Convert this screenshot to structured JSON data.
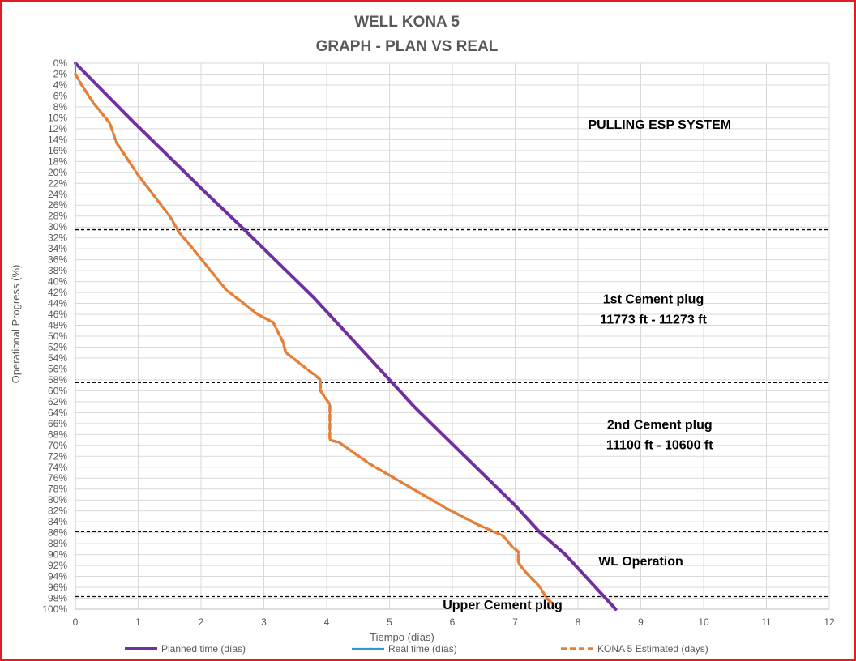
{
  "chart_data": {
    "type": "line",
    "title": [
      "WELL KONA 5",
      "GRAPH  - PLAN VS REAL"
    ],
    "xlabel": "Tiempo (días)",
    "ylabel": "Operational Progress (%)",
    "xlim": [
      0,
      12
    ],
    "ylim": [
      0,
      100
    ],
    "y_inverted": true,
    "x_ticks": [
      0,
      1,
      2,
      3,
      4,
      5,
      6,
      7,
      8,
      9,
      10,
      11,
      12
    ],
    "y_tick_step": 2,
    "y_tick_suffix": "%",
    "grid": true,
    "legend_position": "bottom",
    "series": [
      {
        "name": "Planned time (días)",
        "color": "#7030a0",
        "style": "solid",
        "points": [
          [
            0,
            0
          ],
          [
            0.3,
            3.5
          ],
          [
            0.6,
            7
          ],
          [
            0.9,
            10.5
          ],
          [
            1.3,
            15
          ],
          [
            1.7,
            19.5
          ],
          [
            2.1,
            24
          ],
          [
            2.6,
            29.5
          ],
          [
            3.0,
            34
          ],
          [
            3.4,
            38.5
          ],
          [
            3.8,
            43
          ],
          [
            4.2,
            48
          ],
          [
            4.6,
            53
          ],
          [
            5.0,
            58
          ],
          [
            5.4,
            63
          ],
          [
            5.8,
            67.5
          ],
          [
            6.2,
            72
          ],
          [
            6.6,
            76.5
          ],
          [
            7.0,
            81
          ],
          [
            7.4,
            86
          ],
          [
            7.8,
            90
          ],
          [
            8.2,
            95
          ],
          [
            8.6,
            100
          ]
        ]
      },
      {
        "name": "Real time (días)",
        "color": "#2e9cc8",
        "style": "solid",
        "points": [
          [
            0,
            0
          ],
          [
            0,
            2
          ],
          [
            0.1,
            4
          ],
          [
            0.3,
            7.5
          ],
          [
            0.55,
            11
          ],
          [
            0.65,
            14.5
          ],
          [
            1.0,
            20.5
          ],
          [
            1.5,
            28
          ],
          [
            1.65,
            31
          ],
          [
            1.8,
            33
          ],
          [
            2.4,
            41.5
          ],
          [
            2.9,
            46
          ],
          [
            3.15,
            47.5
          ],
          [
            3.3,
            51
          ],
          [
            3.35,
            53
          ],
          [
            3.85,
            57.5
          ],
          [
            3.9,
            58
          ],
          [
            3.9,
            60
          ],
          [
            4.05,
            62.5
          ],
          [
            4.05,
            69
          ],
          [
            4.2,
            69.5
          ],
          [
            4.7,
            73.5
          ],
          [
            5.3,
            77.5
          ],
          [
            5.9,
            81.5
          ],
          [
            6.4,
            84.5
          ],
          [
            6.8,
            86.5
          ],
          [
            6.95,
            88.5
          ],
          [
            7.05,
            89.5
          ],
          [
            7.05,
            91.5
          ],
          [
            7.15,
            93
          ],
          [
            7.4,
            96
          ],
          [
            7.5,
            98
          ],
          [
            7.6,
            99
          ]
        ]
      },
      {
        "name": "KONA 5 Estimated (days)",
        "color": "#ed7d31",
        "style": "dashed",
        "points": [
          [
            0,
            2
          ],
          [
            0.1,
            4
          ],
          [
            0.3,
            7.5
          ],
          [
            0.55,
            11
          ],
          [
            0.65,
            14.5
          ],
          [
            1.0,
            20.5
          ],
          [
            1.5,
            28
          ],
          [
            1.65,
            31
          ],
          [
            1.8,
            33
          ],
          [
            2.4,
            41.5
          ],
          [
            2.9,
            46
          ],
          [
            3.15,
            47.5
          ],
          [
            3.3,
            51
          ],
          [
            3.35,
            53
          ],
          [
            3.85,
            57.5
          ],
          [
            3.9,
            58
          ],
          [
            3.9,
            60
          ],
          [
            4.05,
            62.5
          ],
          [
            4.05,
            69
          ],
          [
            4.2,
            69.5
          ],
          [
            4.7,
            73.5
          ],
          [
            5.3,
            77.5
          ],
          [
            5.9,
            81.5
          ],
          [
            6.4,
            84.5
          ],
          [
            6.8,
            86.5
          ],
          [
            6.95,
            88.5
          ],
          [
            7.05,
            89.5
          ],
          [
            7.05,
            91.5
          ],
          [
            7.15,
            93
          ],
          [
            7.4,
            96
          ],
          [
            7.5,
            98
          ],
          [
            7.6,
            99
          ]
        ]
      }
    ],
    "phase_lines": [
      30.5,
      58.5,
      85.8,
      97.7
    ],
    "annotations": [
      {
        "lines": [
          "PULLING ESP SYSTEM"
        ],
        "x": 9.3,
        "y": 12
      },
      {
        "lines": [
          "1st Cement plug",
          "11773 ft - 11273 ft"
        ],
        "x": 9.2,
        "y": 44
      },
      {
        "lines": [
          "2nd Cement plug",
          "11100 ft - 10600 ft"
        ],
        "x": 9.3,
        "y": 67
      },
      {
        "lines": [
          "WL Operation"
        ],
        "x": 9.0,
        "y": 92
      },
      {
        "lines": [
          "Upper Cement plug"
        ],
        "x": 6.8,
        "y": 100
      }
    ]
  }
}
